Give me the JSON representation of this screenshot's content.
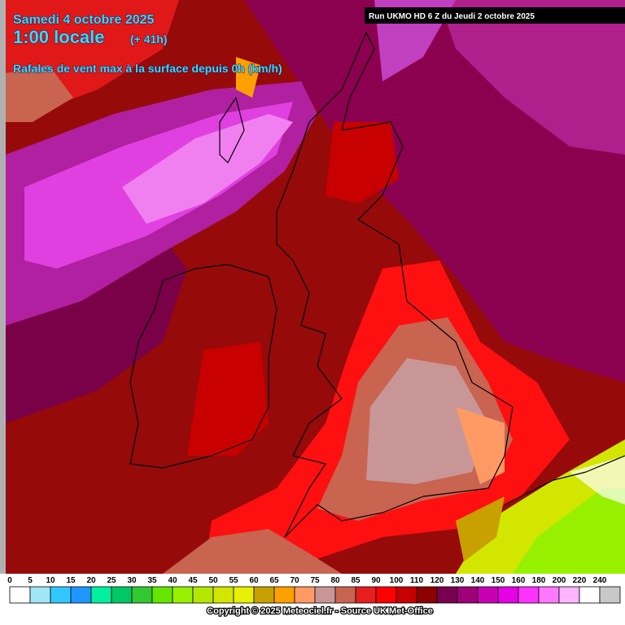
{
  "header": {
    "date": "Samedi 4 octobre 2025",
    "time": "1:00 locale",
    "lead": "(+ 41h)",
    "subtitle": "Rafales de vent max à la surface depuis 0h (km/h)",
    "run": "Run UKMO HD 6 Z du Jeudi 2 octobre 2025"
  },
  "legend": {
    "values": [
      0,
      5,
      10,
      15,
      20,
      25,
      30,
      35,
      40,
      45,
      50,
      55,
      60,
      65,
      70,
      75,
      80,
      85,
      90,
      100,
      110,
      120,
      130,
      140,
      150,
      160,
      180,
      200,
      220,
      240
    ],
    "colors": [
      "#ffffff",
      "#a0e6f5",
      "#32c8ff",
      "#1e96ff",
      "#00f0a0",
      "#00c864",
      "#32c832",
      "#64e600",
      "#96f000",
      "#b4e600",
      "#d2e600",
      "#e6f000",
      "#c8a000",
      "#ffa000",
      "#ff9a64",
      "#c89696",
      "#c86450",
      "#e61e1e",
      "#ff0000",
      "#c80000",
      "#8c0000",
      "#780050",
      "#a00078",
      "#c800b4",
      "#e600e6",
      "#ff32ff",
      "#ff78ff",
      "#ffb4ff",
      "#ffffff",
      "#c8c8c8"
    ]
  },
  "footer": {
    "copyright": "Copyright © 2025 Meteociel.fr - Source UK Met-Office"
  }
}
